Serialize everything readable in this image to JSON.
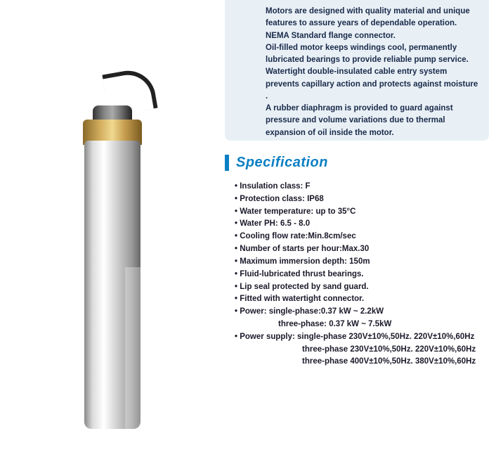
{
  "description": {
    "lines": [
      "Motors are designed with quality material and unique features to assure years of dependable operation.",
      "NEMA Standard flange connector.",
      "Oil-filled motor keeps windings cool, permanently lubricated bearings to provide reliable pump service.",
      "Watertight double-insulated cable entry system prevents capillary action and protects against moisture .",
      "A rubber diaphragm is provided to guard against pressure and volume variations due to thermal expansion of oil inside the motor."
    ],
    "box_bg": "#e8f0f6",
    "text_color": "#1a2a4a"
  },
  "spec": {
    "heading": "Specification",
    "heading_color": "#0b7fc4",
    "items": [
      {
        "text": "Insulation class: F"
      },
      {
        "text": "Protection class: IP68"
      },
      {
        "text": "Water temperature: up to 35°C"
      },
      {
        "text": "Water PH: 6.5 - 8.0"
      },
      {
        "text": "Cooling flow rate:Min.8cm/sec"
      },
      {
        "text": "Number of starts per hour:Max.30"
      },
      {
        "text": "Maximum immersion depth: 150m"
      },
      {
        "text": "Fluid-lubricated thrust bearings."
      },
      {
        "text": "Lip seal protected by sand guard."
      },
      {
        "text": "Fitted with watertight connector."
      },
      {
        "text": "Power: single-phase:0.37 kW ~ 2.2kW",
        "sub": [
          "three-phase: 0.37 kW ~ 7.5kW"
        ]
      },
      {
        "text": "Power supply: single-phase 230V±10%,50Hz. 220V±10%,60Hz",
        "sub2": [
          "three-phase 230V±10%,50Hz.  220V±10%,60Hz",
          "three-phase 400V±10%,50Hz.  380V±10%,60Hz"
        ]
      }
    ]
  },
  "image": {
    "alt": "submersible-motor",
    "body_gradient": [
      "#888",
      "#ddd",
      "#fff",
      "#ccc",
      "#999",
      "#666"
    ],
    "top_gradient": [
      "#8a6a2a",
      "#d4b060",
      "#f0d890",
      "#c8a050",
      "#7a5a20"
    ]
  }
}
